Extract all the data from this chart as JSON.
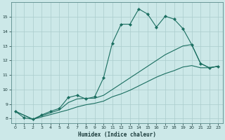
{
  "xlabel": "Humidex (Indice chaleur)",
  "background_color": "#cce8e8",
  "grid_color": "#aacccc",
  "line_color": "#1a6e60",
  "xlim": [
    -0.5,
    23.5
  ],
  "ylim": [
    7.7,
    16.0
  ],
  "yticks": [
    8,
    9,
    10,
    11,
    12,
    13,
    14,
    15
  ],
  "xticks": [
    0,
    1,
    2,
    3,
    4,
    5,
    6,
    7,
    8,
    9,
    10,
    11,
    12,
    13,
    14,
    15,
    16,
    17,
    18,
    19,
    20,
    21,
    22,
    23
  ],
  "line1_x": [
    0,
    1,
    2,
    3,
    4,
    5,
    6,
    7,
    8,
    9,
    10,
    11,
    12,
    13,
    14,
    15,
    16,
    17,
    18,
    19,
    20,
    21,
    22,
    23
  ],
  "line1_y": [
    8.5,
    8.05,
    7.95,
    8.25,
    8.5,
    8.7,
    9.45,
    9.6,
    9.35,
    9.5,
    10.8,
    13.2,
    14.5,
    14.5,
    15.55,
    15.2,
    14.3,
    15.05,
    14.85,
    14.2,
    13.1,
    11.8,
    11.5,
    11.6
  ],
  "line2_x": [
    0,
    2,
    3,
    5,
    6,
    7,
    8,
    9,
    10,
    11,
    12,
    13,
    14,
    15,
    16,
    17,
    18,
    19,
    20,
    21,
    22,
    23
  ],
  "line2_y": [
    8.5,
    7.95,
    8.2,
    8.6,
    9.1,
    9.35,
    9.4,
    9.4,
    9.6,
    10.0,
    10.4,
    10.8,
    11.2,
    11.6,
    12.0,
    12.4,
    12.7,
    13.0,
    13.1,
    11.8,
    11.5,
    11.6
  ],
  "line3_x": [
    0,
    2,
    6,
    7,
    8,
    9,
    10,
    11,
    12,
    13,
    14,
    15,
    16,
    17,
    18,
    19,
    20,
    21,
    22,
    23
  ],
  "line3_y": [
    8.5,
    7.95,
    8.6,
    8.8,
    8.95,
    9.05,
    9.2,
    9.5,
    9.7,
    9.95,
    10.25,
    10.55,
    10.85,
    11.1,
    11.3,
    11.55,
    11.65,
    11.5,
    11.5,
    11.6
  ]
}
